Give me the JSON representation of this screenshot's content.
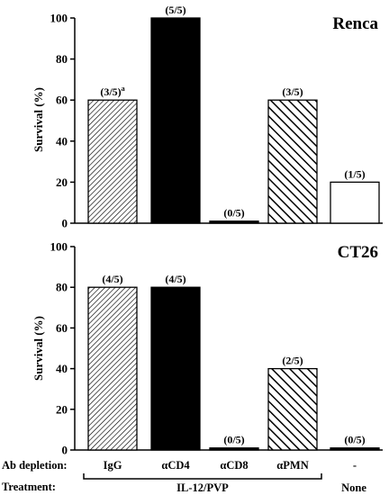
{
  "chart_data": [
    {
      "type": "bar",
      "title": "Renca",
      "ylabel": "Survival (%)",
      "ylim": [
        0,
        100
      ],
      "yticks": [
        0,
        20,
        40,
        60,
        80,
        100
      ],
      "categories": [
        "IgG",
        "αCD4",
        "αCD8",
        "αPMN",
        "-"
      ],
      "values": [
        60,
        100,
        1,
        60,
        20
      ],
      "labels": [
        "(3/5)",
        "(5/5)",
        "(0/5)",
        "(3/5)",
        "(1/5)"
      ],
      "label_superscript": [
        "a",
        "",
        "",
        "",
        ""
      ],
      "fills": [
        "fine-hatch",
        "solid",
        "solid",
        "coarse-hatch",
        "open"
      ]
    },
    {
      "type": "bar",
      "title": "CT26",
      "ylabel": "Survival (%)",
      "ylim": [
        0,
        100
      ],
      "yticks": [
        0,
        20,
        40,
        60,
        80,
        100
      ],
      "categories": [
        "IgG",
        "αCD4",
        "αCD8",
        "αPMN",
        "-"
      ],
      "values": [
        80,
        80,
        1,
        40,
        1
      ],
      "labels": [
        "(4/5)",
        "(4/5)",
        "(0/5)",
        "(2/5)",
        "(0/5)"
      ],
      "label_superscript": [
        "",
        "",
        "",
        "",
        ""
      ],
      "fills": [
        "fine-hatch",
        "solid",
        "solid",
        "coarse-hatch",
        "solid"
      ]
    }
  ],
  "bottom": {
    "ab_depletion_label": "Ab depletion:",
    "ab_depletion_values": [
      "IgG",
      "αCD4",
      "αCD8",
      "αPMN",
      "-"
    ],
    "treatment_label": "Treatment:",
    "treatment_group": "IL-12/PVP",
    "treatment_none": "None"
  },
  "colors": {
    "ink": "#000000",
    "background": "#ffffff"
  }
}
